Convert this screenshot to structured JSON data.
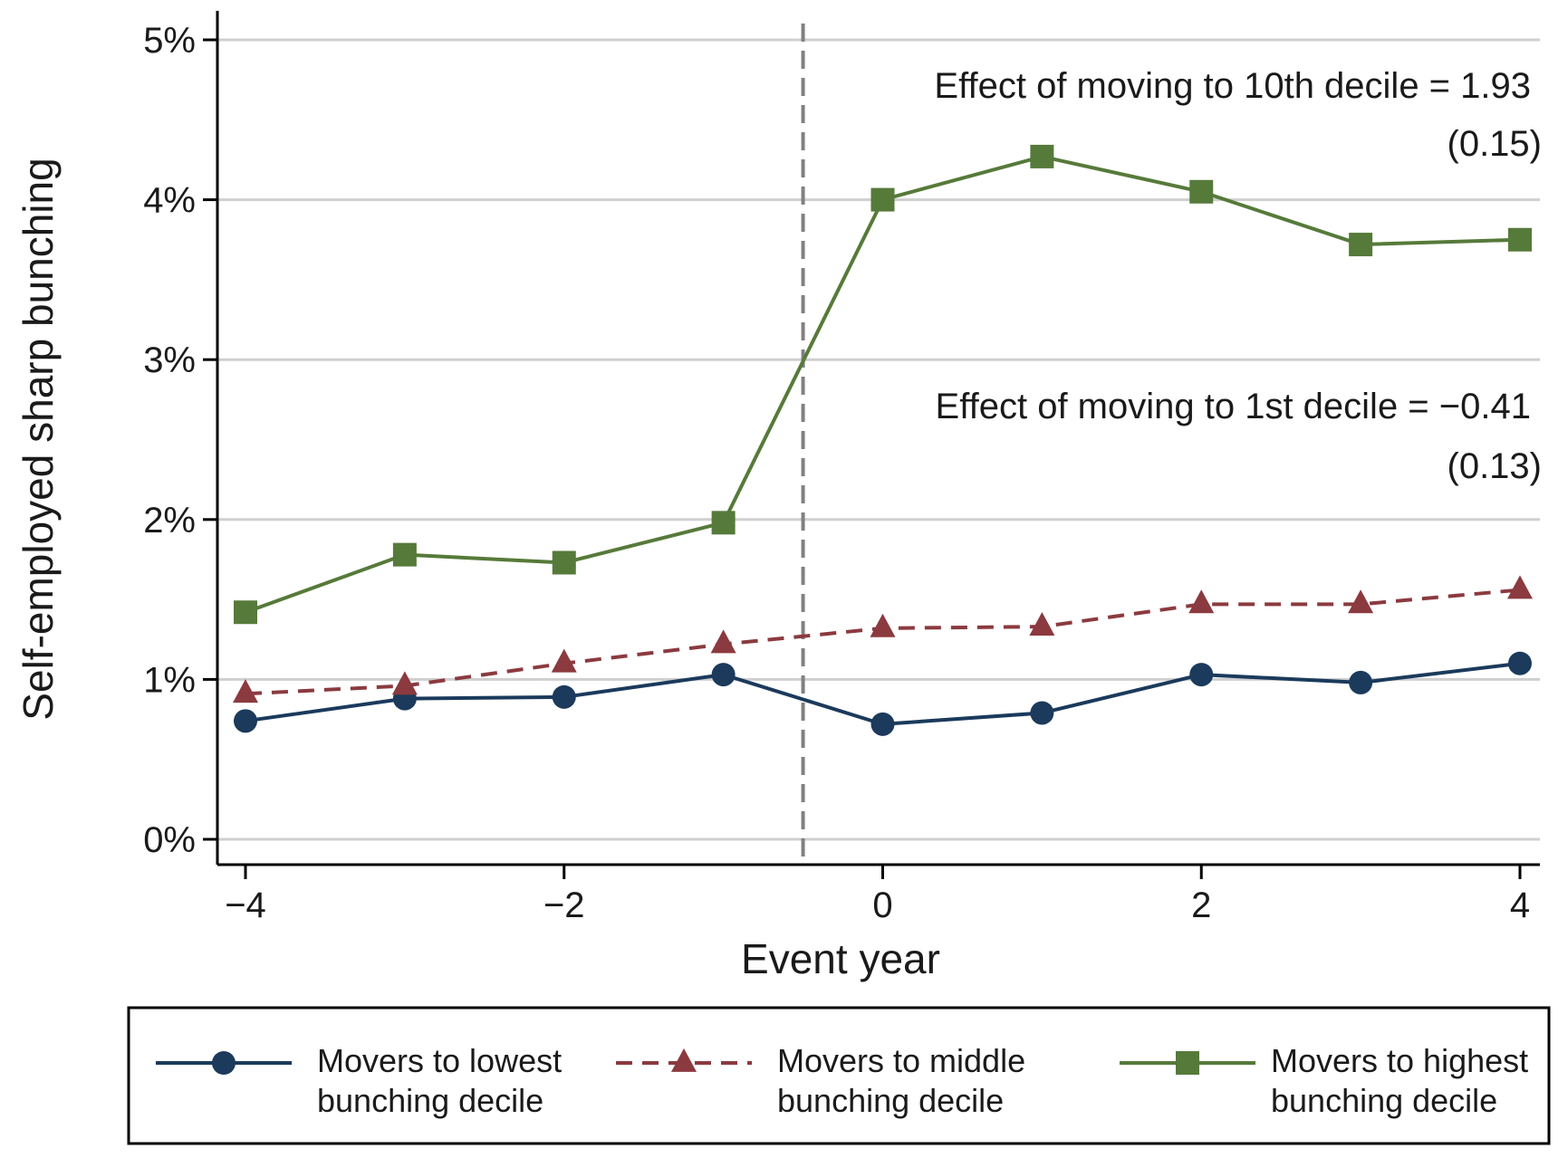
{
  "chart_data": {
    "type": "line",
    "xlabel": "Event year",
    "ylabel": "Self-employed sharp bunching",
    "xlim": [
      -4,
      4
    ],
    "ylim": [
      0,
      5
    ],
    "x_ticks": [
      -4,
      -2,
      0,
      2,
      4
    ],
    "x_tick_labels": [
      "−4",
      "−2",
      "0",
      "2",
      "4"
    ],
    "y_ticks": [
      0,
      1,
      2,
      3,
      4,
      5
    ],
    "y_tick_labels": [
      "0%",
      "1%",
      "2%",
      "3%",
      "4%",
      "5%"
    ],
    "grid": "horizontal",
    "event_line_x": -0.5,
    "x": [
      -4,
      -3,
      -2,
      -1,
      0,
      1,
      2,
      3,
      4
    ],
    "series": [
      {
        "name": "Movers to lowest bunching decile",
        "name_lines": [
          "Movers to lowest",
          "bunching decile"
        ],
        "values": [
          0.74,
          0.88,
          0.89,
          1.03,
          0.72,
          0.79,
          1.03,
          0.98,
          1.1
        ],
        "color": "#1b3a5c",
        "marker": "circle",
        "dash": "solid"
      },
      {
        "name": "Movers to middle bunching decile",
        "name_lines": [
          "Movers to middle",
          "bunching decile"
        ],
        "values": [
          0.91,
          0.96,
          1.1,
          1.22,
          1.32,
          1.33,
          1.47,
          1.47,
          1.56
        ],
        "color": "#8b3a3f",
        "marker": "triangle",
        "dash": "dashed"
      },
      {
        "name": "Movers to highest bunching decile",
        "name_lines": [
          "Movers to highest",
          "bunching decile"
        ],
        "values": [
          1.42,
          1.78,
          1.73,
          1.98,
          4.0,
          4.27,
          4.05,
          3.72,
          3.75
        ],
        "color": "#567a3a",
        "marker": "square",
        "dash": "solid"
      }
    ],
    "annotations": [
      {
        "line1": "Effect of moving to 10th decile = 1.93",
        "line2": "(0.15)"
      },
      {
        "line1": "Effect of moving to 1st decile = −0.41",
        "line2": "(0.13)"
      }
    ],
    "legend_placement": "bottom"
  }
}
